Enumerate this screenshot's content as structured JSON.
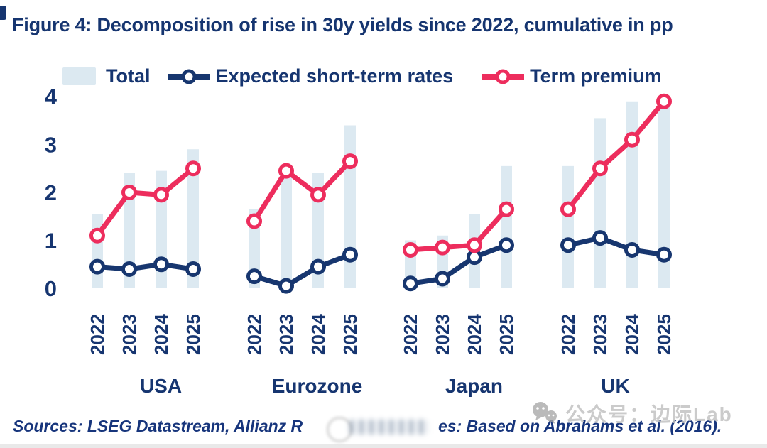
{
  "colors": {
    "navy_text": "#163570",
    "navy_line": "#17366f",
    "pink_line": "#ed2d5d",
    "bar_fill": "#dce9f1",
    "footer_navy": "#17357c",
    "watermark_gray": "#c2c2c2"
  },
  "chart_data": {
    "type": "bar+line small-multiples (4 panels)",
    "title": "Figure 4: Decomposition of rise in 30y yields since 2022, cumulative in pp",
    "categories": [
      "2022",
      "2023",
      "2024",
      "2025"
    ],
    "ylim": [
      0,
      4
    ],
    "yticks": [
      0,
      1,
      2,
      3,
      4
    ],
    "grid": false,
    "legend_position": "top",
    "series_meta": [
      {
        "name": "Total",
        "type": "bar",
        "color": "#dce9f1"
      },
      {
        "name": "Expected short-term rates",
        "type": "line",
        "color": "#17366f"
      },
      {
        "name": "Term premium",
        "type": "line",
        "color": "#ed2d5d"
      }
    ],
    "panels": [
      {
        "label": "USA",
        "total": [
          1.55,
          2.4,
          2.45,
          2.9
        ],
        "expected_short_term_rates": [
          0.45,
          0.4,
          0.5,
          0.4
        ],
        "term_premium": [
          1.1,
          2.0,
          1.95,
          2.5
        ]
      },
      {
        "label": "Eurozone",
        "total": [
          1.65,
          2.4,
          2.4,
          3.4
        ],
        "expected_short_term_rates": [
          0.25,
          0.05,
          0.45,
          0.7
        ],
        "term_premium": [
          1.4,
          2.45,
          1.95,
          2.65
        ]
      },
      {
        "label": "Japan",
        "total": [
          1.0,
          1.1,
          1.55,
          2.55
        ],
        "expected_short_term_rates": [
          0.1,
          0.2,
          0.65,
          0.9
        ],
        "term_premium": [
          0.8,
          0.85,
          0.9,
          1.65
        ]
      },
      {
        "label": "UK",
        "total": [
          2.55,
          3.55,
          3.9,
          3.9
        ],
        "expected_short_term_rates": [
          0.9,
          1.05,
          0.8,
          0.7
        ],
        "term_premium": [
          1.65,
          2.5,
          3.1,
          3.9
        ]
      }
    ]
  },
  "footer": {
    "sources_left": "Sources: LSEG Datastream, Allianz R",
    "sources_right": "es: Based on Abrahams et al. (2016).",
    "watermark_text": "公众号：边际Lab"
  }
}
